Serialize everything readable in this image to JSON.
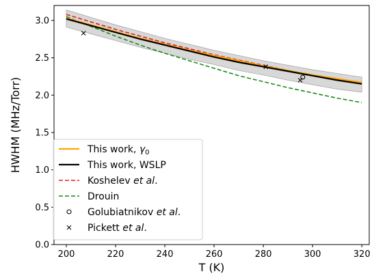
{
  "chart_data": {
    "type": "line",
    "xlabel": "T (K)",
    "ylabel": "HWHM (MHz/Torr)",
    "xlim": [
      195,
      323
    ],
    "ylim": [
      0.0,
      3.2
    ],
    "x_ticks": [
      200,
      220,
      240,
      260,
      280,
      300,
      320
    ],
    "x_tick_labels": [
      "200",
      "220",
      "240",
      "260",
      "280",
      "300",
      "320"
    ],
    "y_ticks": [
      0.0,
      0.5,
      1.0,
      1.5,
      2.0,
      2.5,
      3.0
    ],
    "y_tick_labels": [
      "0.0",
      "0.5",
      "1.0",
      "1.5",
      "2.0",
      "2.5",
      "3.0"
    ],
    "grid": false,
    "legend_position": "lower-left",
    "uncertainty_band": {
      "x": [
        200,
        210,
        220,
        230,
        240,
        250,
        260,
        270,
        280,
        290,
        300,
        310,
        320
      ],
      "lower": [
        2.91,
        2.82,
        2.73,
        2.64,
        2.56,
        2.48,
        2.41,
        2.33,
        2.27,
        2.2,
        2.14,
        2.08,
        2.04
      ],
      "upper": [
        3.14,
        3.04,
        2.94,
        2.85,
        2.76,
        2.68,
        2.6,
        2.53,
        2.46,
        2.4,
        2.34,
        2.29,
        2.24
      ],
      "color": "#d8d8d8"
    },
    "series": [
      {
        "name": "This work, γ0",
        "style": "solid",
        "color": "#ffa500",
        "x": [
          200,
          210,
          220,
          230,
          240,
          250,
          260,
          270,
          280,
          290,
          300,
          310,
          320
        ],
        "values": [
          3.03,
          2.94,
          2.85,
          2.76,
          2.68,
          2.6,
          2.53,
          2.46,
          2.39,
          2.33,
          2.27,
          2.22,
          2.17
        ]
      },
      {
        "name": "This work, WSLP",
        "style": "solid",
        "color": "#000000",
        "x": [
          200,
          210,
          220,
          230,
          240,
          250,
          260,
          270,
          280,
          290,
          300,
          310,
          320
        ],
        "values": [
          3.02,
          2.93,
          2.84,
          2.75,
          2.67,
          2.59,
          2.51,
          2.44,
          2.38,
          2.32,
          2.26,
          2.2,
          2.15
        ]
      },
      {
        "name": "Koshelev et al.",
        "style": "dashed",
        "color": "#e31a1c",
        "x": [
          200,
          210,
          220,
          230,
          240,
          250,
          260,
          270,
          280,
          290,
          300,
          310,
          320
        ],
        "values": [
          3.08,
          2.98,
          2.88,
          2.79,
          2.7,
          2.62,
          2.54,
          2.47,
          2.4,
          2.33,
          2.27,
          2.21,
          2.16
        ]
      },
      {
        "name": "Drouin",
        "style": "dashed",
        "color": "#1a8a1a",
        "x": [
          200,
          210,
          220,
          230,
          240,
          250,
          260,
          270,
          280,
          290,
          300,
          310,
          320
        ],
        "values": [
          3.05,
          2.92,
          2.79,
          2.67,
          2.56,
          2.46,
          2.36,
          2.26,
          2.18,
          2.1,
          2.03,
          1.96,
          1.9
        ]
      }
    ],
    "points": [
      {
        "name": "Golubiatnikov et al.",
        "marker": "circle",
        "x": [
          296
        ],
        "values": [
          2.24
        ]
      },
      {
        "name": "Pickett et al.",
        "marker": "x",
        "x": [
          207,
          281,
          295
        ],
        "values": [
          2.83,
          2.38,
          2.2
        ]
      }
    ]
  }
}
